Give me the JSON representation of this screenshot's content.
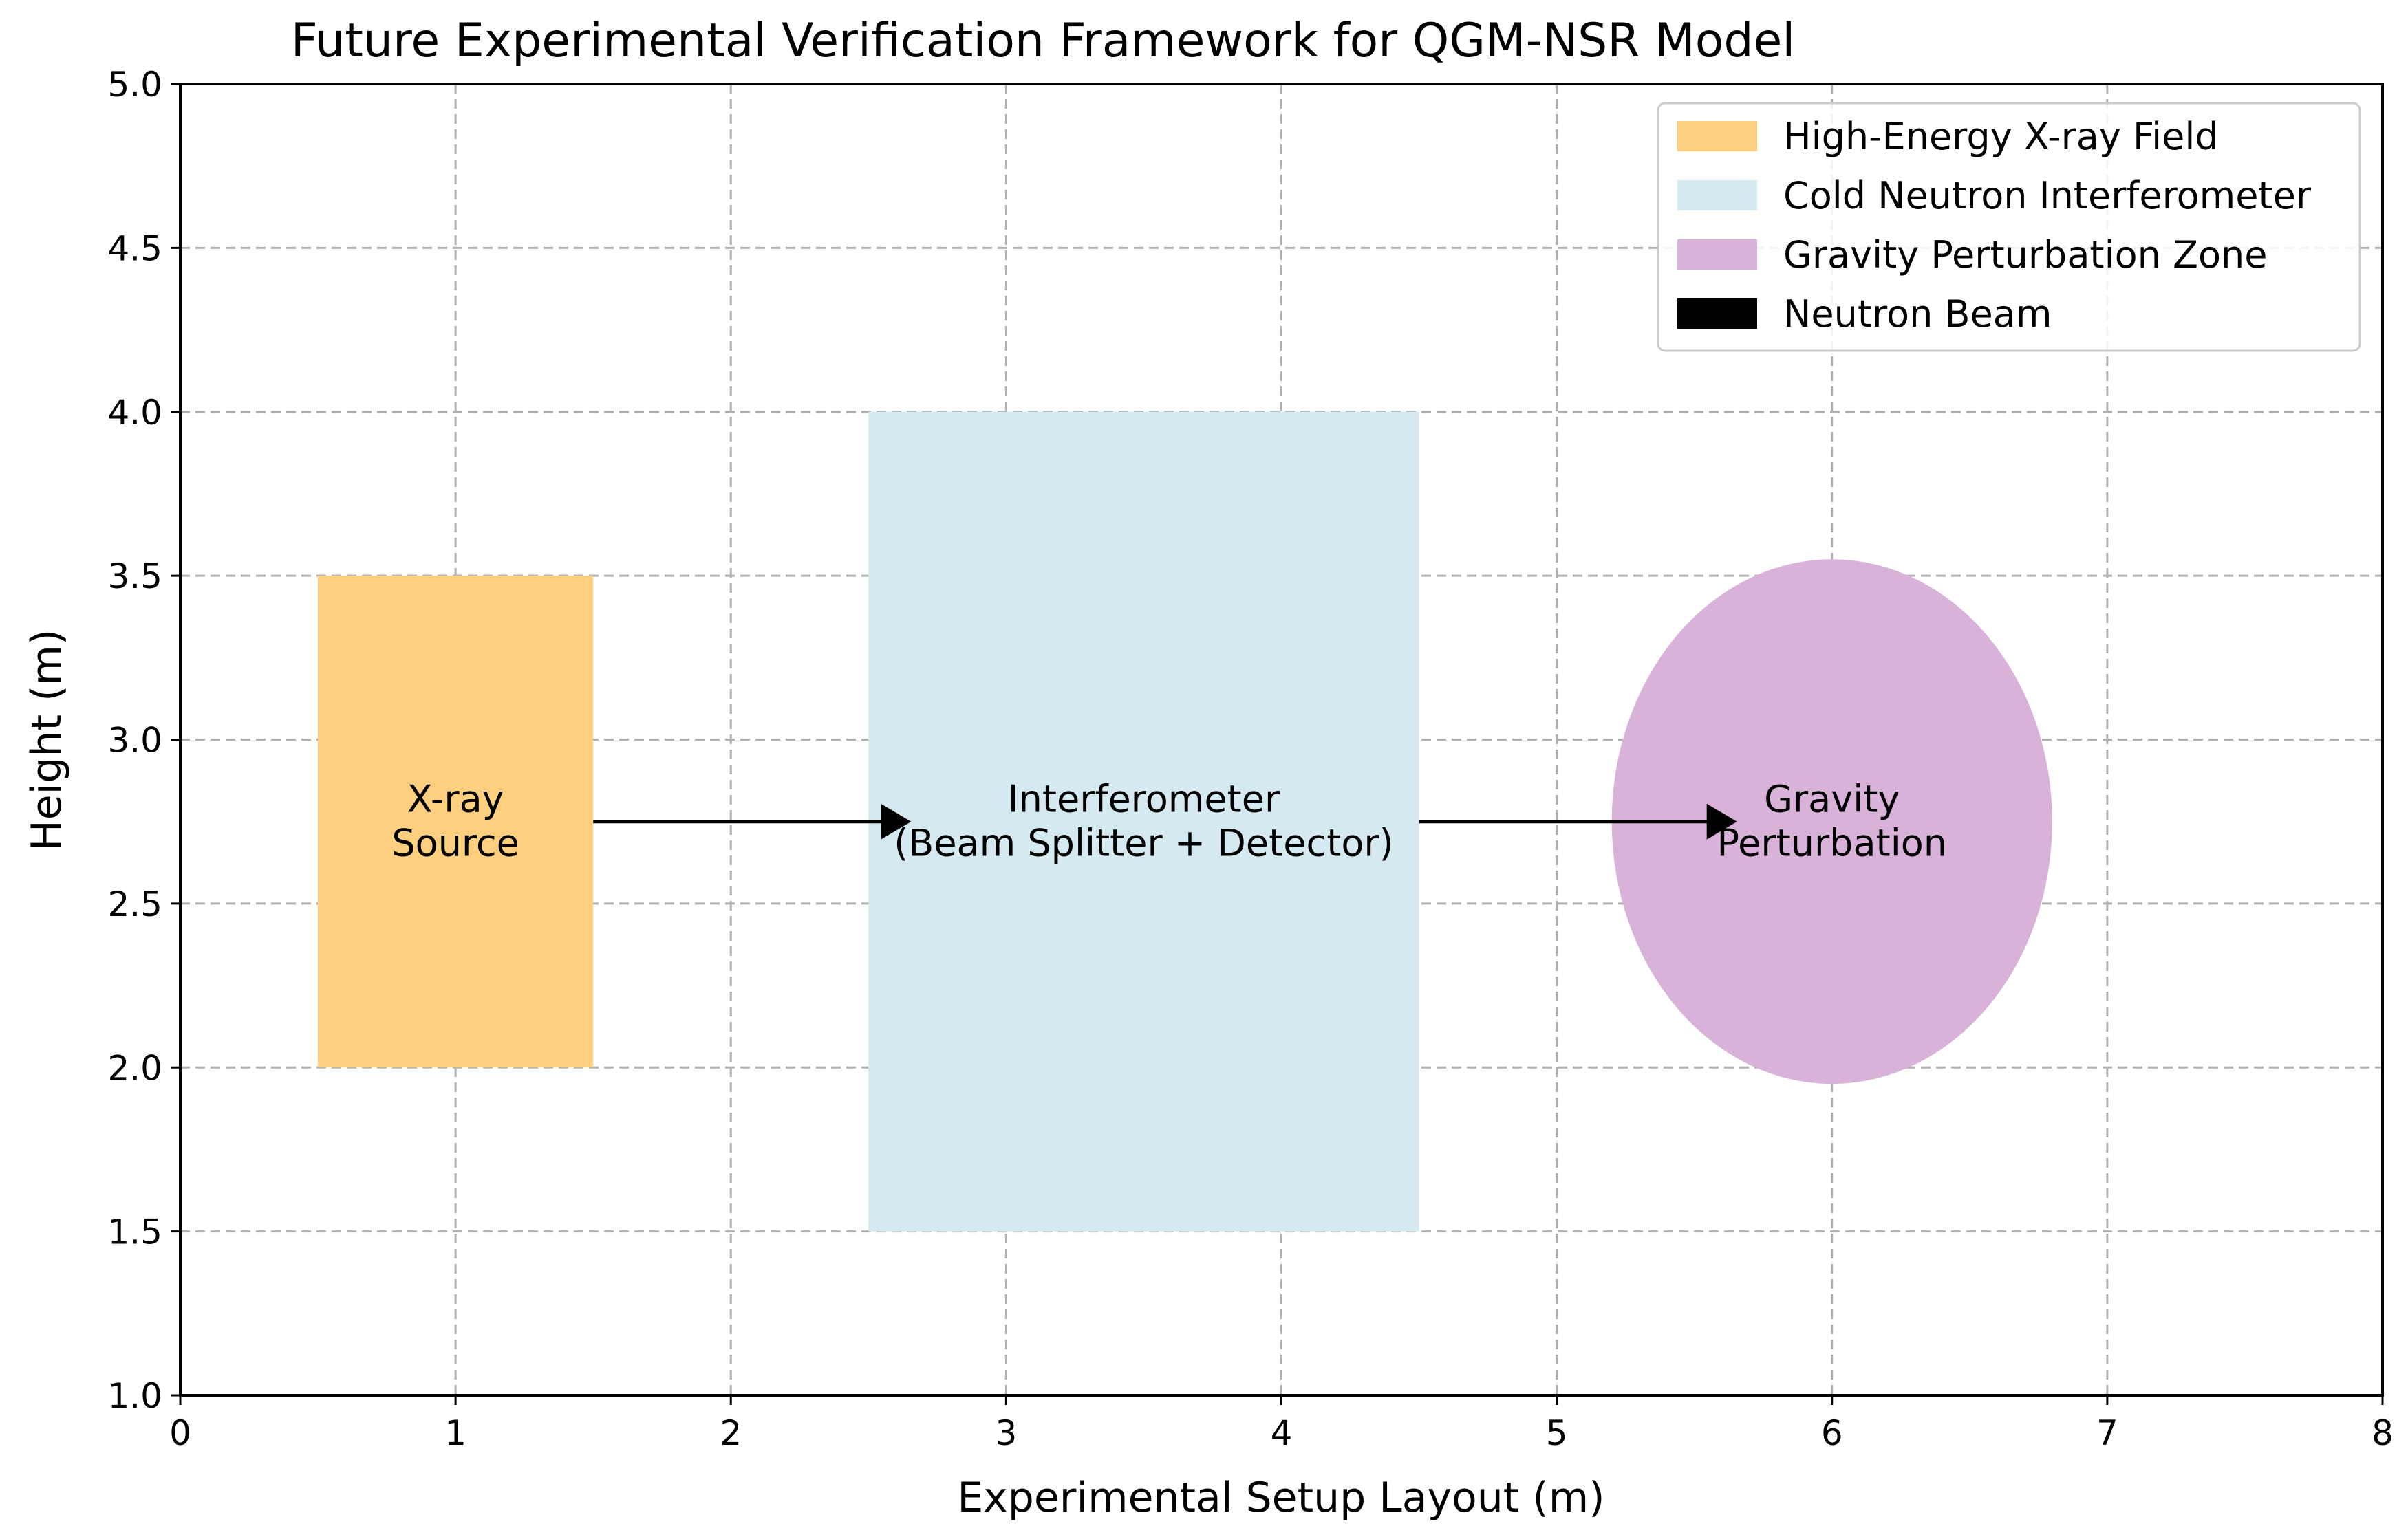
{
  "chart_data": {
    "type": "diagram",
    "title": "Future Experimental Verification Framework for QGM-NSR Model",
    "xlabel": "Experimental Setup Layout (m)",
    "ylabel": "Height (m)",
    "xlim": [
      0,
      8
    ],
    "ylim": [
      1.0,
      5.0
    ],
    "x_ticks": [
      0,
      1,
      2,
      3,
      4,
      5,
      6,
      7,
      8
    ],
    "x_tick_labels": [
      "0",
      "1",
      "2",
      "3",
      "4",
      "5",
      "6",
      "7",
      "8"
    ],
    "y_ticks": [
      1.0,
      1.5,
      2.0,
      2.5,
      3.0,
      3.5,
      4.0,
      4.5,
      5.0
    ],
    "y_tick_labels": [
      "1.0",
      "1.5",
      "2.0",
      "2.5",
      "3.0",
      "3.5",
      "4.0",
      "4.5",
      "5.0"
    ],
    "grid": true,
    "legend_position": "top-right",
    "shapes": [
      {
        "name": "xray-source-rect",
        "kind": "rect",
        "x": 0.5,
        "y": 2.0,
        "width": 1.0,
        "height": 1.5,
        "color": "#fecf7e",
        "label_lines": [
          "X-ray",
          "Source"
        ],
        "label_x": 1.0,
        "label_y": 2.75
      },
      {
        "name": "interferometer-rect",
        "kind": "rect",
        "x": 2.5,
        "y": 1.5,
        "width": 2.0,
        "height": 2.5,
        "color": "#d4e9f0",
        "label_lines": [
          "Interferometer",
          "(Beam Splitter + Detector)"
        ],
        "label_x": 3.5,
        "label_y": 2.75
      },
      {
        "name": "gravity-ellipse",
        "kind": "ellipse",
        "cx": 6.0,
        "cy": 2.75,
        "rx": 0.8,
        "ry": 0.8,
        "color": "#d8b2d9",
        "label_lines": [
          "Gravity",
          "Perturbation"
        ],
        "label_x": 6.0,
        "label_y": 2.75
      }
    ],
    "arrows": [
      {
        "name": "neutron-beam-arrow-1",
        "x1": 1.5,
        "y1": 2.75,
        "x2": 2.6,
        "y2": 2.75
      },
      {
        "name": "neutron-beam-arrow-2",
        "x1": 4.5,
        "y1": 2.75,
        "x2": 5.6,
        "y2": 2.75
      }
    ],
    "legend": [
      {
        "label": "High-Energy X-ray Field",
        "color": "#fecf7e"
      },
      {
        "label": "Cold Neutron Interferometer",
        "color": "#d4e9f0"
      },
      {
        "label": "Gravity Perturbation Zone",
        "color": "#d8b2d9"
      },
      {
        "label": "Neutron Beam",
        "color": "#000000"
      }
    ]
  }
}
